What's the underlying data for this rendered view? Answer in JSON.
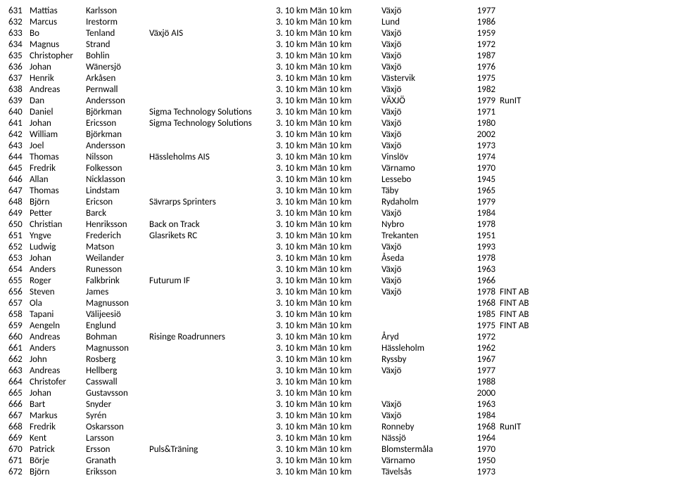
{
  "rows": [
    {
      "num": "631",
      "first": "Mattias",
      "last": "Karlsson",
      "club": "",
      "event": "3. 10 km Män 10 km",
      "place": "Växjö",
      "year": "1977",
      "note": ""
    },
    {
      "num": "632",
      "first": "Marcus",
      "last": "Irestorm",
      "club": "",
      "event": "3. 10 km Män 10 km",
      "place": "Lund",
      "year": "1986",
      "note": ""
    },
    {
      "num": "633",
      "first": "Bo",
      "last": "Tenland",
      "club": "Växjö AIS",
      "event": "3. 10 km Män 10 km",
      "place": "Växjö",
      "year": "1959",
      "note": ""
    },
    {
      "num": "634",
      "first": "Magnus",
      "last": "Strand",
      "club": "",
      "event": "3. 10 km Män 10 km",
      "place": "Växjö",
      "year": "1972",
      "note": ""
    },
    {
      "num": "635",
      "first": "Christopher",
      "last": "Bohlin",
      "club": "",
      "event": "3. 10 km Män 10 km",
      "place": "Växjö",
      "year": "1987",
      "note": ""
    },
    {
      "num": "636",
      "first": "Johan",
      "last": "Wänersjö",
      "club": "",
      "event": "3. 10 km Män 10 km",
      "place": "Växjö",
      "year": "1976",
      "note": ""
    },
    {
      "num": "637",
      "first": "Henrik",
      "last": "Arkåsen",
      "club": "",
      "event": "3. 10 km Män 10 km",
      "place": "Västervik",
      "year": "1975",
      "note": ""
    },
    {
      "num": "638",
      "first": "Andreas",
      "last": "Pernwall",
      "club": "",
      "event": "3. 10 km Män 10 km",
      "place": "Växjö",
      "year": "1982",
      "note": ""
    },
    {
      "num": "639",
      "first": "Dan",
      "last": "Andersson",
      "club": "",
      "event": "3. 10 km Män 10 km",
      "place": "VÄXJÖ",
      "year": "1979",
      "note": "RunIT"
    },
    {
      "num": "640",
      "first": "Daniel",
      "last": "Björkman",
      "club": "Sigma Technology Solutions",
      "event": "3. 10 km Män 10 km",
      "place": "Växjö",
      "year": "1971",
      "note": ""
    },
    {
      "num": "641",
      "first": "Johan",
      "last": "Ericsson",
      "club": "Sigma Technology Solutions",
      "event": "3. 10 km Män 10 km",
      "place": "Växjö",
      "year": "1980",
      "note": ""
    },
    {
      "num": "642",
      "first": "William",
      "last": "Björkman",
      "club": "",
      "event": "3. 10 km Män 10 km",
      "place": "Växjö",
      "year": "2002",
      "note": ""
    },
    {
      "num": "643",
      "first": "Joel",
      "last": "Andersson",
      "club": "",
      "event": "3. 10 km Män 10 km",
      "place": "Växjö",
      "year": "1973",
      "note": ""
    },
    {
      "num": "644",
      "first": "Thomas",
      "last": "Nilsson",
      "club": "Hässleholms AIS",
      "event": "3. 10 km Män 10 km",
      "place": "Vinslöv",
      "year": "1974",
      "note": ""
    },
    {
      "num": "645",
      "first": "Fredrik",
      "last": "Folkesson",
      "club": "",
      "event": "3. 10 km Män 10 km",
      "place": "Värnamo",
      "year": "1970",
      "note": ""
    },
    {
      "num": "646",
      "first": "Allan",
      "last": "Nicklasson",
      "club": "",
      "event": "3. 10 km Män 10 km",
      "place": "Lessebo",
      "year": "1945",
      "note": ""
    },
    {
      "num": "647",
      "first": "Thomas",
      "last": "Lindstam",
      "club": "",
      "event": "3. 10 km Män 10 km",
      "place": "Täby",
      "year": "1965",
      "note": ""
    },
    {
      "num": "648",
      "first": "Björn",
      "last": "Ericson",
      "club": "Sävrarps Sprinters",
      "event": "3. 10 km Män 10 km",
      "place": "Rydaholm",
      "year": "1979",
      "note": ""
    },
    {
      "num": "649",
      "first": "Petter",
      "last": "Barck",
      "club": "",
      "event": "3. 10 km Män 10 km",
      "place": "Växjö",
      "year": "1984",
      "note": ""
    },
    {
      "num": "650",
      "first": "Christian",
      "last": "Henriksson",
      "club": "Back on Track",
      "event": "3. 10 km Män 10 km",
      "place": "Nybro",
      "year": "1978",
      "note": ""
    },
    {
      "num": "651",
      "first": "Yngve",
      "last": "Frederich",
      "club": "Glasrikets RC",
      "event": "3. 10 km Män 10 km",
      "place": "Trekanten",
      "year": "1951",
      "note": ""
    },
    {
      "num": "652",
      "first": "Ludwig",
      "last": "Matson",
      "club": "",
      "event": "3. 10 km Män 10 km",
      "place": "Växjö",
      "year": "1993",
      "note": ""
    },
    {
      "num": "653",
      "first": "Johan",
      "last": "Weilander",
      "club": "",
      "event": "3. 10 km Män 10 km",
      "place": "Åseda",
      "year": "1978",
      "note": ""
    },
    {
      "num": "654",
      "first": "Anders",
      "last": "Runesson",
      "club": "",
      "event": "3. 10 km Män 10 km",
      "place": "Växjö",
      "year": "1963",
      "note": ""
    },
    {
      "num": "655",
      "first": "Roger",
      "last": "Falkbrink",
      "club": "Futurum IF",
      "event": "3. 10 km Män 10 km",
      "place": "Växjö",
      "year": "1966",
      "note": ""
    },
    {
      "num": "656",
      "first": "Steven",
      "last": "James",
      "club": "",
      "event": "3. 10 km Män 10 km",
      "place": "Växjö",
      "year": "1978",
      "note": "FINT AB"
    },
    {
      "num": "657",
      "first": "Ola",
      "last": "Magnusson",
      "club": "",
      "event": "3. 10 km Män 10 km",
      "place": "",
      "year": "1968",
      "note": "FINT AB"
    },
    {
      "num": "658",
      "first": "Tapani",
      "last": "Välijeesiö",
      "club": "",
      "event": "3. 10 km Män 10 km",
      "place": "",
      "year": "1985",
      "note": "FINT AB"
    },
    {
      "num": "659",
      "first": "Aengeln",
      "last": "Englund",
      "club": "",
      "event": "3. 10 km Män 10 km",
      "place": "",
      "year": "1975",
      "note": "FINT AB"
    },
    {
      "num": "660",
      "first": "Andreas",
      "last": "Bohman",
      "club": "Risinge Roadrunners",
      "event": "3. 10 km Män 10 km",
      "place": "Åryd",
      "year": "1972",
      "note": ""
    },
    {
      "num": "661",
      "first": "Anders",
      "last": "Magnusson",
      "club": "",
      "event": "3. 10 km Män 10 km",
      "place": "Hässleholm",
      "year": "1962",
      "note": ""
    },
    {
      "num": "662",
      "first": "John",
      "last": "Rosberg",
      "club": "",
      "event": "3. 10 km Män 10 km",
      "place": "Ryssby",
      "year": "1967",
      "note": ""
    },
    {
      "num": "663",
      "first": "Andreas",
      "last": "Hellberg",
      "club": "",
      "event": "3. 10 km Män 10 km",
      "place": "Växjö",
      "year": "1977",
      "note": ""
    },
    {
      "num": "664",
      "first": "Christofer",
      "last": "Casswall",
      "club": "",
      "event": "3. 10 km Män 10 km",
      "place": "",
      "year": "1988",
      "note": ""
    },
    {
      "num": "665",
      "first": "Johan",
      "last": "Gustavsson",
      "club": "",
      "event": "3. 10 km Män 10 km",
      "place": "",
      "year": "2000",
      "note": ""
    },
    {
      "num": "666",
      "first": "Bart",
      "last": "Snyder",
      "club": "",
      "event": "3. 10 km Män 10 km",
      "place": "Växjö",
      "year": "1963",
      "note": ""
    },
    {
      "num": "667",
      "first": "Markus",
      "last": "Syrén",
      "club": "",
      "event": "3. 10 km Män 10 km",
      "place": "Växjö",
      "year": "1984",
      "note": ""
    },
    {
      "num": "668",
      "first": "Fredrik",
      "last": "Oskarsson",
      "club": "",
      "event": "3. 10 km Män 10 km",
      "place": "Ronneby",
      "year": "1968",
      "note": "RunIT"
    },
    {
      "num": "669",
      "first": "Kent",
      "last": "Larsson",
      "club": "",
      "event": "3. 10 km Män 10 km",
      "place": "Nässjö",
      "year": "1964",
      "note": ""
    },
    {
      "num": "670",
      "first": "Patrick",
      "last": "Ersson",
      "club": "Puls&Träning",
      "event": "3. 10 km Män 10 km",
      "place": "Blomstermåla",
      "year": "1970",
      "note": ""
    },
    {
      "num": "671",
      "first": "Börje",
      "last": "Granath",
      "club": "",
      "event": "3. 10 km Män 10 km",
      "place": "Värnamo",
      "year": "1950",
      "note": ""
    },
    {
      "num": "672",
      "first": "Björn",
      "last": "Eriksson",
      "club": "",
      "event": "3. 10 km Män 10 km",
      "place": "Tävelsås",
      "year": "1973",
      "note": ""
    }
  ]
}
